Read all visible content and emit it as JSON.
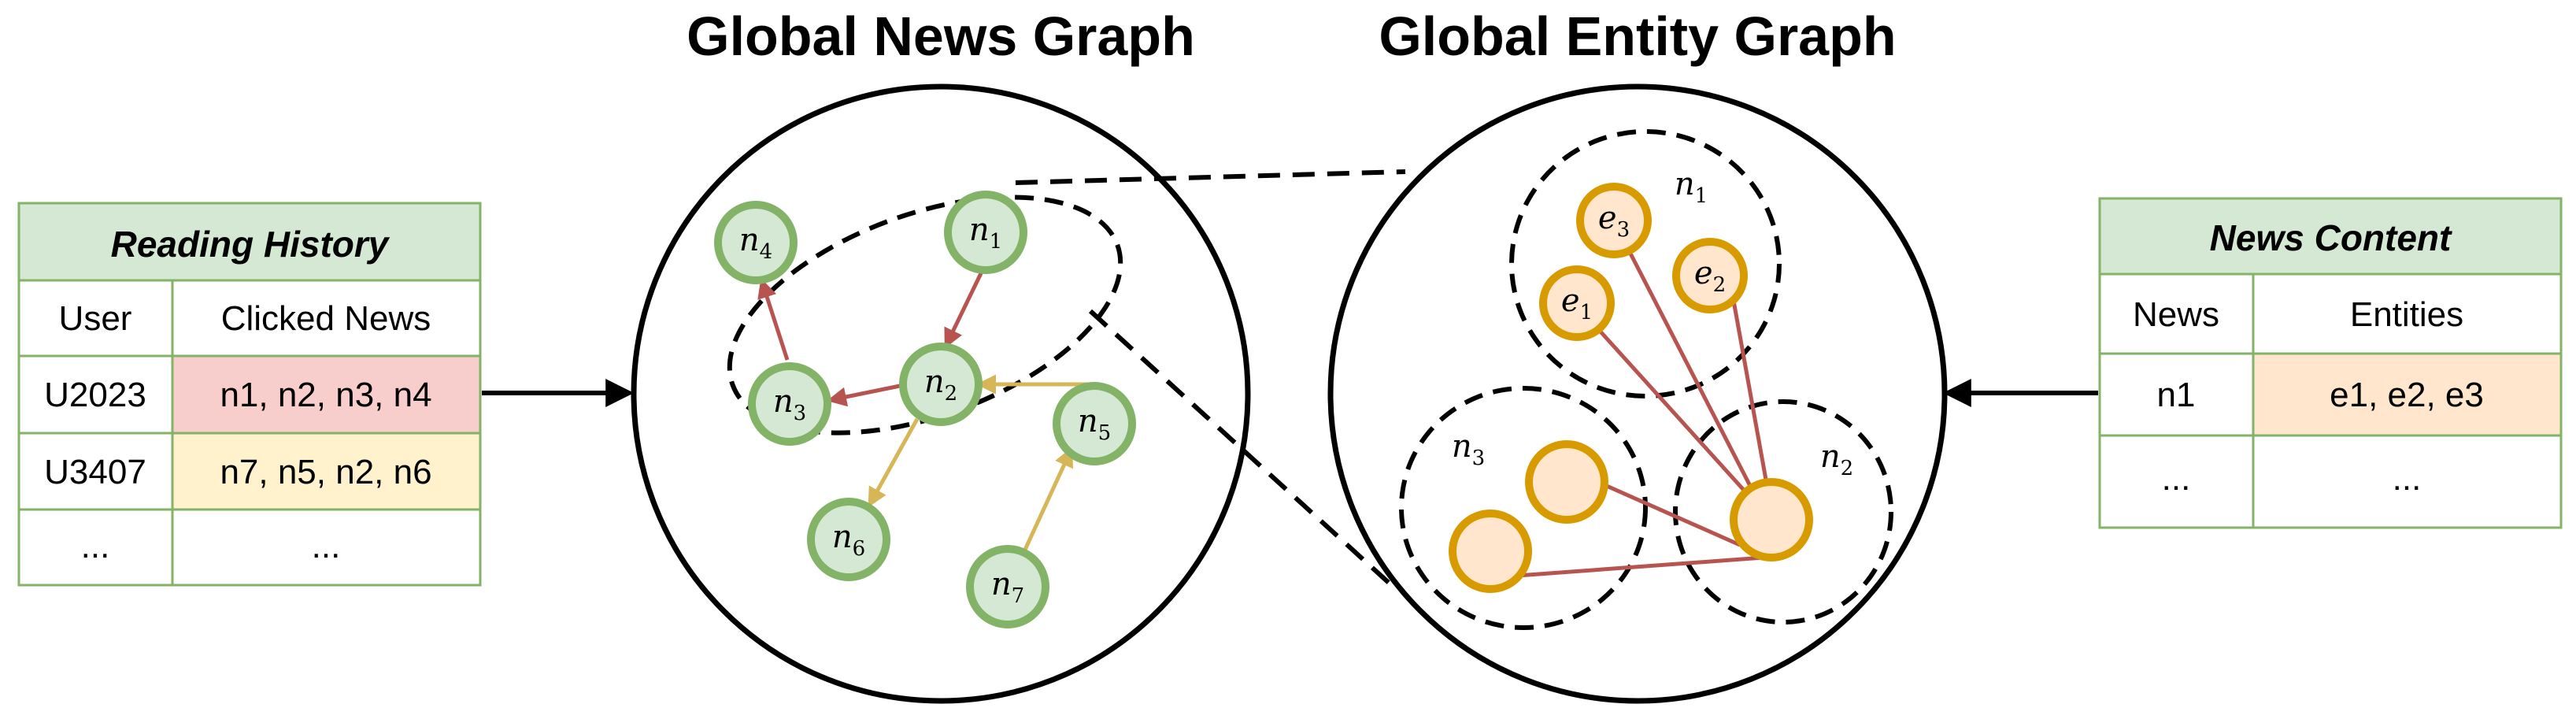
{
  "titles": {
    "news_graph": "Global News Graph",
    "entity_graph": "Global Entity Graph"
  },
  "reading_history": {
    "title": "Reading History",
    "headers": [
      "User",
      "Clicked News"
    ],
    "rows": [
      {
        "user": "U2023",
        "clicked": "n1, n2, n3, n4"
      },
      {
        "user": "U3407",
        "clicked": "n7, n5, n2, n6"
      },
      {
        "user": "...",
        "clicked": "..."
      }
    ]
  },
  "news_content": {
    "title": "News Content",
    "headers": [
      "News",
      "Entities"
    ],
    "rows": [
      {
        "news": "n1",
        "entities": "e1, e2, e3"
      },
      {
        "news": "...",
        "entities": "..."
      }
    ]
  },
  "news_nodes": [
    {
      "sym": "n",
      "sub": "1"
    },
    {
      "sym": "n",
      "sub": "2"
    },
    {
      "sym": "n",
      "sub": "3"
    },
    {
      "sym": "n",
      "sub": "4"
    },
    {
      "sym": "n",
      "sub": "5"
    },
    {
      "sym": "n",
      "sub": "6"
    },
    {
      "sym": "n",
      "sub": "7"
    }
  ],
  "entity_nodes": [
    {
      "sym": "e",
      "sub": "1"
    },
    {
      "sym": "e",
      "sub": "2"
    },
    {
      "sym": "e",
      "sub": "3"
    }
  ],
  "cluster_labels": [
    {
      "sym": "n",
      "sub": "1"
    },
    {
      "sym": "n",
      "sub": "2"
    },
    {
      "sym": "n",
      "sub": "3"
    }
  ],
  "colors": {
    "table_header": "#d5e8d4",
    "table_border": "#82b366",
    "row_red": "#f8cecc",
    "row_yellow": "#fff2cc",
    "row_orange": "#ffe6cc",
    "news_fill": "#d5e8d4",
    "news_stroke": "#82b366",
    "entity_fill": "#ffe6cc",
    "entity_stroke": "#d79b00",
    "edge_red": "#b85450",
    "edge_yellow": "#d6b656"
  }
}
